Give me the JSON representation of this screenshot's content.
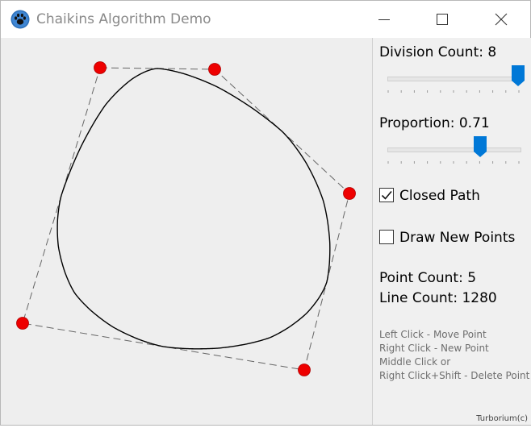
{
  "window": {
    "title": "Chaikins Algorithm Demo",
    "icon": "paw-icon",
    "controls": [
      "minimize-icon",
      "maximize-icon",
      "close-icon"
    ]
  },
  "panel": {
    "division_label": "Division Count: 8",
    "division_value": 8,
    "division_max": 8,
    "proportion_label": "Proportion: 0.71",
    "proportion_value": 0.71,
    "closed_path_label": "Closed Path",
    "closed_path_checked": true,
    "draw_new_points_label": "Draw New Points",
    "draw_new_points_checked": false,
    "point_count_label": "Point Count: 5",
    "line_count_label": "Line Count: 1280",
    "help_lines": [
      "Left Click - Move Point",
      "Right Click - New Point",
      "Middle Click or",
      "Right Click+Shift - Delete Point"
    ],
    "credit": "Turborium(c)"
  },
  "colors": {
    "accent": "#0078d7",
    "control_point": "#ee0000",
    "curve": "#000000"
  }
}
